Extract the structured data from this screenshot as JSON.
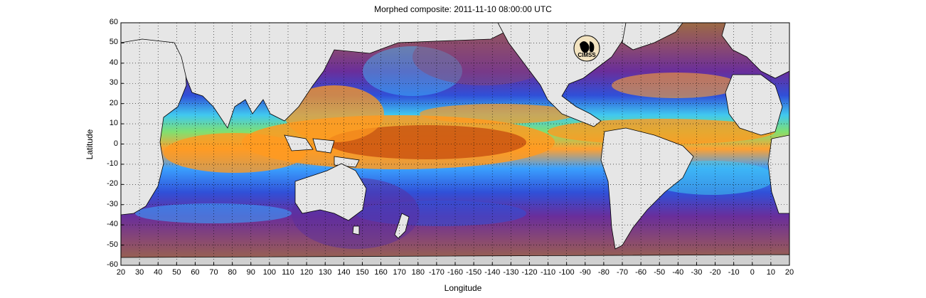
{
  "title": "Morphed composite: 2011-11-10 08:00:00 UTC",
  "xlabel": "Longitude",
  "ylabel": "Latitude",
  "logo_text": "CIMSS",
  "yticks": [
    "60",
    "50",
    "40",
    "30",
    "20",
    "10",
    "0",
    "-10",
    "-20",
    "-30",
    "-40",
    "-50",
    "-60"
  ],
  "xticks": [
    "20",
    "30",
    "40",
    "50",
    "60",
    "70",
    "80",
    "90",
    "100",
    "110",
    "120",
    "130",
    "140",
    "150",
    "160",
    "170",
    "180",
    "-170",
    "-160",
    "-150",
    "-140",
    "-130",
    "-120",
    "-110",
    "-100",
    "-90",
    "-80",
    "-70",
    "-60",
    "-50",
    "-40",
    "-30",
    "-20",
    "-10",
    "0",
    "10",
    "20"
  ],
  "map": {
    "projection": "equirectangular",
    "lon_range": [
      20,
      380
    ],
    "lat_range": [
      -60,
      60
    ],
    "land_color": "#e6e6e6",
    "palette": [
      "#9c6a45",
      "#7a3a8a",
      "#5a2ea0",
      "#2a4cd0",
      "#3aa0ff",
      "#40e0e0",
      "#ffe040",
      "#ff9a20",
      "#e06010",
      "#a03000"
    ]
  }
}
